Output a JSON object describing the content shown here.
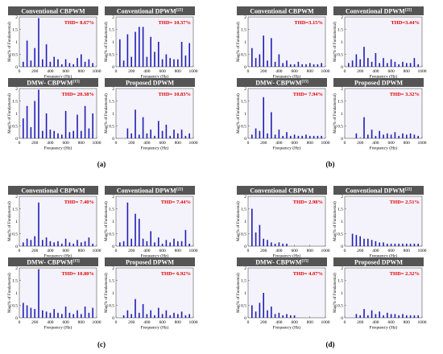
{
  "panel_labels": [
    "(a)",
    "(b)",
    "(c)",
    "(d)"
  ],
  "axis_label_x": "Frequency (Hz)",
  "axis_label_y": "Mag(% of Fundamental)",
  "colors": {
    "title_bg": "#555555",
    "title_text": "#ffffff",
    "bar": "#1f1fb4",
    "thd_text": "#e00000",
    "plot_bg": "#f4f2fa",
    "axis": "#555555"
  },
  "chart_data": [
    {
      "group": "(a)",
      "title": "Conventional CBPWM",
      "thd_text": "THD= 8.67%",
      "type": "bar",
      "xlim": [
        0,
        1000
      ],
      "ylim": [
        0,
        2
      ],
      "x": [
        50,
        100,
        150,
        200,
        250,
        300,
        350,
        400,
        450,
        500,
        550,
        600,
        650,
        700,
        750,
        800,
        850,
        900,
        950
      ],
      "values": [
        0.2,
        1.05,
        0.25,
        0.75,
        1.95,
        0.3,
        0.9,
        0.2,
        0.4,
        0.3,
        0.1,
        0.3,
        0.15,
        0.1,
        0.35,
        0.5,
        0.2,
        0.3,
        0.15
      ]
    },
    {
      "group": "(a)",
      "title": "Conventional DPWM",
      "title_sup": "[22]",
      "thd_text": "THD= 10.37%",
      "type": "bar",
      "xlim": [
        0,
        1000
      ],
      "ylim": [
        0,
        2
      ],
      "x": [
        50,
        100,
        150,
        200,
        250,
        300,
        350,
        400,
        450,
        500,
        550,
        600,
        650,
        700,
        750,
        800,
        850,
        900,
        950
      ],
      "values": [
        1.1,
        0.25,
        1.3,
        0.4,
        1.4,
        1.6,
        1.6,
        0.4,
        1.2,
        0.6,
        1.0,
        0.3,
        0.5,
        0.35,
        0.3,
        0.3,
        1.0,
        0.45,
        0.95
      ]
    },
    {
      "group": "(a)",
      "title": "DMW- CBPWM",
      "title_sup": "[15]",
      "thd_text": "THD= 20.38%",
      "type": "bar",
      "xlim": [
        0,
        1000
      ],
      "ylim": [
        0,
        2
      ],
      "x": [
        50,
        100,
        150,
        200,
        250,
        300,
        350,
        400,
        450,
        500,
        550,
        600,
        650,
        700,
        750,
        800,
        850,
        900,
        950
      ],
      "values": [
        0.8,
        1.3,
        0.45,
        1.5,
        1.95,
        0.3,
        1.0,
        0.35,
        0.3,
        0.2,
        0.15,
        1.1,
        0.25,
        0.3,
        0.95,
        0.3,
        1.3,
        0.4,
        1.0
      ]
    },
    {
      "group": "(a)",
      "title": "Proposed DPWM",
      "thd_text": "THD= 10.83%",
      "type": "bar",
      "xlim": [
        0,
        1000
      ],
      "ylim": [
        0,
        2
      ],
      "x": [
        150,
        200,
        250,
        300,
        350,
        400,
        450,
        500,
        550,
        600,
        650,
        700,
        750,
        800,
        850,
        900,
        950
      ],
      "values": [
        0.4,
        0.2,
        1.15,
        0.15,
        0.85,
        0.2,
        0.35,
        0.1,
        0.7,
        0.3,
        0.55,
        0.1,
        0.35,
        0.2,
        0.35,
        0.1,
        0.2
      ]
    },
    {
      "group": "(b)",
      "title": "Conventional CBPWM",
      "thd_text": "THD=3.15%",
      "type": "bar",
      "xlim": [
        0,
        1000
      ],
      "ylim": [
        0,
        2
      ],
      "x": [
        50,
        100,
        150,
        200,
        250,
        300,
        350,
        400,
        450,
        500,
        550,
        600,
        650,
        700,
        750,
        800,
        850,
        900,
        950
      ],
      "values": [
        0.75,
        0.35,
        0.5,
        1.25,
        0.25,
        1.15,
        0.2,
        0.5,
        0.15,
        0.25,
        0.1,
        0.1,
        0.2,
        0.1,
        0.1,
        0.15,
        0.1,
        0.1,
        0.15
      ]
    },
    {
      "group": "(b)",
      "title": "Conventional DPWM",
      "title_sup": "[22]",
      "thd_text": "THD=3.44%",
      "type": "bar",
      "xlim": [
        0,
        1000
      ],
      "ylim": [
        0,
        2
      ],
      "x": [
        50,
        100,
        150,
        200,
        250,
        300,
        350,
        400,
        450,
        500,
        550,
        600,
        650,
        700,
        750,
        800,
        850,
        900,
        950
      ],
      "values": [
        0.15,
        0.25,
        0.5,
        0.3,
        0.8,
        0.35,
        0.2,
        0.55,
        0.15,
        0.35,
        0.15,
        0.3,
        0.2,
        0.1,
        0.2,
        0.15,
        0.15,
        0.35,
        0.1
      ]
    },
    {
      "group": "(b)",
      "title": "DMW- CBPWM",
      "title_sup": "[15]",
      "thd_text": "THD= 7.94%",
      "type": "bar",
      "xlim": [
        0,
        1000
      ],
      "ylim": [
        0,
        2
      ],
      "x": [
        50,
        100,
        150,
        200,
        250,
        300,
        350,
        400,
        450,
        500,
        550,
        600,
        650,
        700,
        750,
        800,
        850,
        900,
        950
      ],
      "values": [
        0.15,
        0.4,
        0.3,
        1.65,
        0.2,
        1.05,
        0.15,
        0.35,
        0.1,
        0.25,
        0.1,
        0.15,
        0.1,
        0.1,
        0.15,
        0.1,
        0.1,
        0.1,
        0.1
      ]
    },
    {
      "group": "(b)",
      "title": "Proposed DPWM",
      "thd_text": "THD= 3.32%",
      "type": "bar",
      "xlim": [
        0,
        1000
      ],
      "ylim": [
        0,
        2
      ],
      "x": [
        150,
        250,
        300,
        350,
        400,
        450,
        500,
        550,
        600,
        650,
        700,
        750,
        800,
        850,
        900,
        950
      ],
      "values": [
        0.2,
        0.85,
        0.15,
        0.35,
        0.1,
        0.3,
        0.15,
        0.2,
        0.15,
        0.25,
        0.1,
        0.2,
        0.15,
        0.2,
        0.15,
        0.1
      ]
    },
    {
      "group": "(c)",
      "title": "Conventional CBPWM",
      "thd_text": "THD= 7.40%",
      "type": "bar",
      "xlim": [
        0,
        1000
      ],
      "ylim": [
        0,
        2
      ],
      "x": [
        50,
        100,
        150,
        200,
        250,
        300,
        350,
        400,
        450,
        500,
        550,
        600,
        650,
        700,
        750,
        800,
        850,
        900,
        950
      ],
      "values": [
        0.15,
        0.3,
        0.25,
        0.4,
        1.75,
        0.25,
        0.35,
        0.2,
        0.15,
        0.2,
        0.1,
        0.3,
        0.15,
        0.1,
        0.25,
        0.15,
        0.2,
        0.35,
        0.1
      ]
    },
    {
      "group": "(c)",
      "title": "Conventional DPWM",
      "title_sup": "[22]",
      "thd_text": "THD= 7.44%",
      "type": "bar",
      "xlim": [
        0,
        1000
      ],
      "ylim": [
        0,
        2
      ],
      "x": [
        50,
        100,
        150,
        200,
        250,
        300,
        350,
        400,
        450,
        500,
        550,
        600,
        650,
        700,
        750,
        800,
        850,
        900,
        950
      ],
      "values": [
        0.15,
        0.2,
        1.75,
        0.3,
        1.3,
        1.1,
        0.3,
        0.2,
        0.6,
        0.15,
        0.35,
        0.1,
        0.25,
        0.15,
        0.3,
        0.2,
        0.2,
        0.65,
        0.1
      ]
    },
    {
      "group": "(c)",
      "title": "DMW- CBPWM",
      "title_sup": "[15]",
      "thd_text": "THD= 10.80%",
      "type": "bar",
      "xlim": [
        0,
        1000
      ],
      "ylim": [
        0,
        2
      ],
      "x": [
        50,
        100,
        150,
        200,
        250,
        300,
        350,
        400,
        450,
        500,
        550,
        600,
        650,
        700,
        750,
        800,
        850,
        900,
        950
      ],
      "values": [
        0.6,
        0.5,
        0.4,
        0.35,
        1.95,
        0.3,
        0.25,
        0.2,
        0.35,
        0.2,
        0.15,
        0.45,
        0.2,
        0.15,
        0.3,
        0.15,
        0.45,
        0.2,
        0.4
      ]
    },
    {
      "group": "(c)",
      "title": "Proposed DPWM",
      "thd_text": "THD= 6.92%",
      "type": "bar",
      "xlim": [
        0,
        1000
      ],
      "ylim": [
        0,
        2
      ],
      "x": [
        100,
        150,
        200,
        250,
        300,
        350,
        400,
        450,
        500,
        550,
        600,
        650,
        700,
        750,
        800,
        850,
        900,
        950
      ],
      "values": [
        0.1,
        0.3,
        0.15,
        0.75,
        0.2,
        0.55,
        0.15,
        0.3,
        0.1,
        0.4,
        0.15,
        0.3,
        0.1,
        0.2,
        0.15,
        0.25,
        0.1,
        0.15
      ]
    },
    {
      "group": "(d)",
      "title": "Conventional CBPWM",
      "thd_text": "THD= 2.98%",
      "type": "bar",
      "xlim": [
        0,
        1000
      ],
      "ylim": [
        0,
        2
      ],
      "x": [
        50,
        100,
        150,
        200,
        250,
        300,
        350,
        400,
        450,
        500
      ],
      "values": [
        1.5,
        0.55,
        0.85,
        0.3,
        0.25,
        0.15,
        0.1,
        0.15,
        0.1,
        0.1
      ]
    },
    {
      "group": "(d)",
      "title": "Conventional DPWM",
      "title_sup": "[22]",
      "thd_text": "THD= 2.51%",
      "type": "bar",
      "xlim": [
        0,
        1000
      ],
      "ylim": [
        0,
        2
      ],
      "x": [
        100,
        150,
        200,
        250,
        300,
        350,
        400,
        450,
        500,
        550,
        600,
        650,
        700,
        750,
        800,
        850,
        900,
        950
      ],
      "values": [
        0.5,
        0.45,
        0.4,
        0.3,
        0.3,
        0.25,
        0.2,
        0.15,
        0.15,
        0.1,
        0.1,
        0.1,
        0.1,
        0.1,
        0.1,
        0.1,
        0.1,
        0.1
      ]
    },
    {
      "group": "(d)",
      "title": "DMW- CBPWM",
      "title_sup": "[15]",
      "thd_text": "THD= 4.07%",
      "type": "bar",
      "xlim": [
        0,
        1000
      ],
      "ylim": [
        0,
        2
      ],
      "x": [
        50,
        100,
        150,
        200,
        250,
        300,
        350,
        400,
        450,
        500,
        550,
        600
      ],
      "values": [
        0.5,
        0.25,
        0.6,
        1.0,
        0.3,
        0.45,
        0.15,
        0.2,
        0.1,
        0.15,
        0.1,
        0.1
      ]
    },
    {
      "group": "(d)",
      "title": "Proposed DPWM",
      "thd_text": "THD= 2.32%",
      "type": "bar",
      "xlim": [
        0,
        1000
      ],
      "ylim": [
        0,
        2
      ],
      "x": [
        150,
        200,
        250,
        300,
        350,
        400,
        450,
        500,
        550,
        600,
        650,
        700,
        750,
        800,
        850,
        900,
        950
      ],
      "values": [
        0.15,
        0.1,
        0.35,
        0.1,
        0.3,
        0.15,
        0.25,
        0.1,
        0.2,
        0.15,
        0.15,
        0.1,
        0.15,
        0.1,
        0.1,
        0.1,
        0.1
      ]
    }
  ]
}
